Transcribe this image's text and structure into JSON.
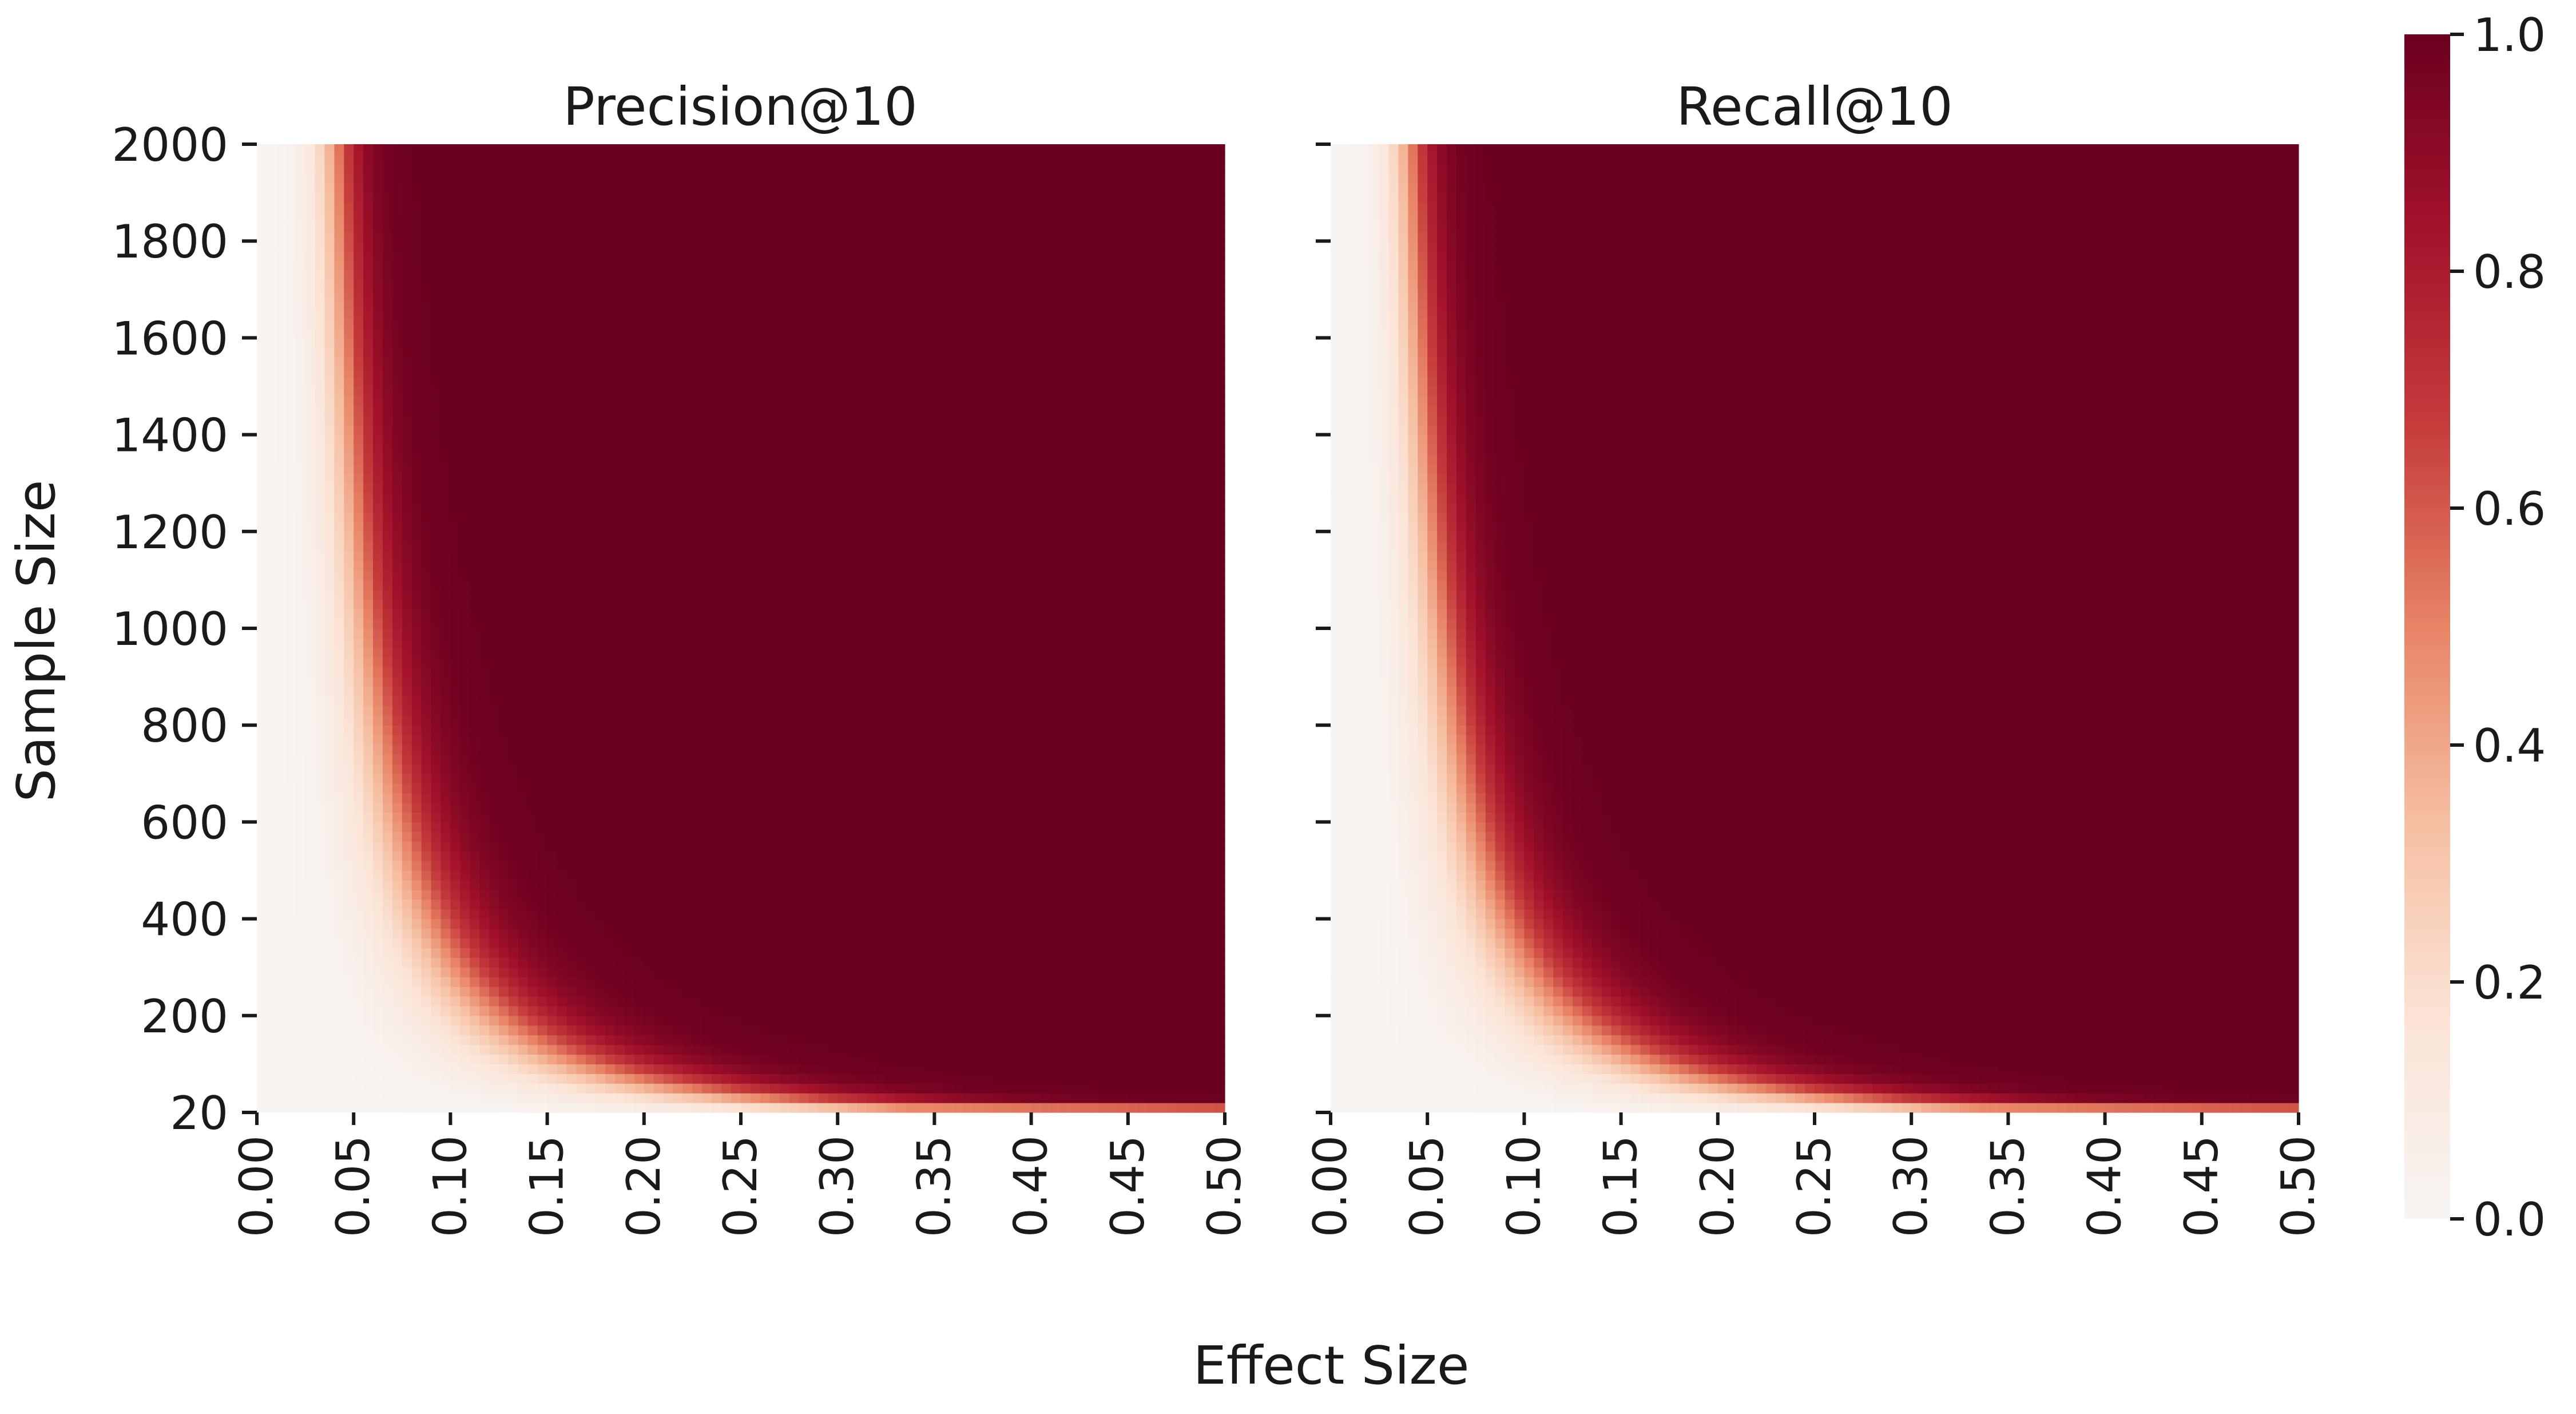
{
  "figure": {
    "xlabel": "Effect Size",
    "ylabel": "Sample Size"
  },
  "colorbar": {
    "range": [
      0.0,
      1.0
    ],
    "ticks": [
      "0.0",
      "0.2",
      "0.4",
      "0.6",
      "0.8",
      "1.0"
    ],
    "colors": [
      "#f7f4f2",
      "#fbe4d6",
      "#f6bfa2",
      "#e88465",
      "#c63d3c",
      "#a5122b",
      "#6b0020"
    ]
  },
  "chart_data": [
    {
      "type": "heatmap",
      "title": "Precision@10",
      "xlabel": "Effect Size",
      "ylabel": "Sample Size",
      "x_range": [
        0.0,
        0.5
      ],
      "y_range": [
        20,
        2000
      ],
      "x_ticks": [
        "0.00",
        "0.05",
        "0.10",
        "0.15",
        "0.20",
        "0.25",
        "0.30",
        "0.35",
        "0.40",
        "0.45",
        "0.50"
      ],
      "y_ticks": [
        "20",
        "200",
        "400",
        "600",
        "800",
        "1000",
        "1200",
        "1400",
        "1600",
        "1800",
        "2000"
      ],
      "grid_cols": 100,
      "grid_rows": 100,
      "value_range": [
        0.0,
        1.0
      ],
      "bottom_row_max_value": 0.62
    },
    {
      "type": "heatmap",
      "title": "Recall@10",
      "xlabel": "Effect Size",
      "ylabel": "Sample Size",
      "x_range": [
        0.0,
        0.5
      ],
      "y_range": [
        20,
        2000
      ],
      "x_ticks": [
        "0.00",
        "0.05",
        "0.10",
        "0.15",
        "0.20",
        "0.25",
        "0.30",
        "0.35",
        "0.40",
        "0.45",
        "0.50"
      ],
      "y_ticks": [
        "20",
        "200",
        "400",
        "600",
        "800",
        "1000",
        "1200",
        "1400",
        "1600",
        "1800",
        "2000"
      ],
      "grid_cols": 100,
      "grid_rows": 100,
      "value_range": [
        0.0,
        1.0
      ],
      "bottom_row_max_value": 0.62
    }
  ]
}
